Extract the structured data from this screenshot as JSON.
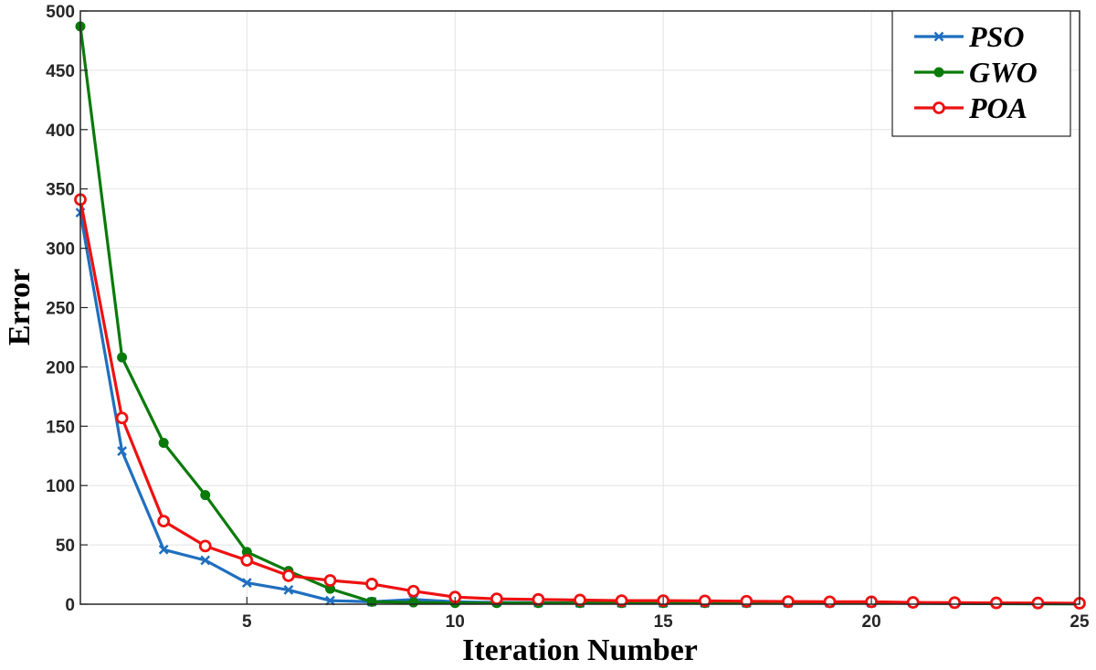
{
  "chart_data": {
    "type": "line",
    "xlabel": "Iteration Number",
    "ylabel": "Error",
    "xlim": [
      1,
      25
    ],
    "ylim": [
      0,
      500
    ],
    "xticks": [
      5,
      10,
      15,
      20,
      25
    ],
    "yticks": [
      0,
      50,
      100,
      150,
      200,
      250,
      300,
      350,
      400,
      450,
      500
    ],
    "grid": true,
    "legend_position": "top-right",
    "x": [
      1,
      2,
      3,
      4,
      5,
      6,
      7,
      8,
      9,
      10,
      11,
      12,
      13,
      14,
      15,
      16,
      17,
      18,
      19,
      20,
      21,
      22,
      23,
      24,
      25
    ],
    "series": [
      {
        "name": "PSO",
        "color": "#1f6fbf",
        "marker": "x",
        "values": [
          330,
          129,
          46,
          37,
          18,
          12,
          3,
          2,
          4,
          2,
          1.5,
          1.2,
          1,
          1,
          1,
          1,
          1,
          1,
          1,
          1,
          0.8,
          0.6,
          0.5,
          0.4,
          0.3
        ]
      },
      {
        "name": "GWO",
        "color": "#0a7a0a",
        "marker": "filled-circle",
        "values": [
          487,
          208,
          136,
          92,
          44,
          28,
          13,
          2,
          1.5,
          1,
          1,
          1,
          1,
          1,
          1,
          1,
          1,
          1,
          1,
          1,
          0.8,
          0.6,
          0.5,
          0.4,
          0.3
        ]
      },
      {
        "name": "POA",
        "color": "#ee1111",
        "marker": "open-circle",
        "values": [
          341,
          157,
          70,
          49,
          37,
          24,
          20,
          17,
          11,
          6,
          4.5,
          4,
          3.5,
          3,
          3,
          2.8,
          2.5,
          2.2,
          2,
          2,
          1.5,
          1.3,
          1.1,
          1,
          0.8
        ]
      }
    ]
  }
}
